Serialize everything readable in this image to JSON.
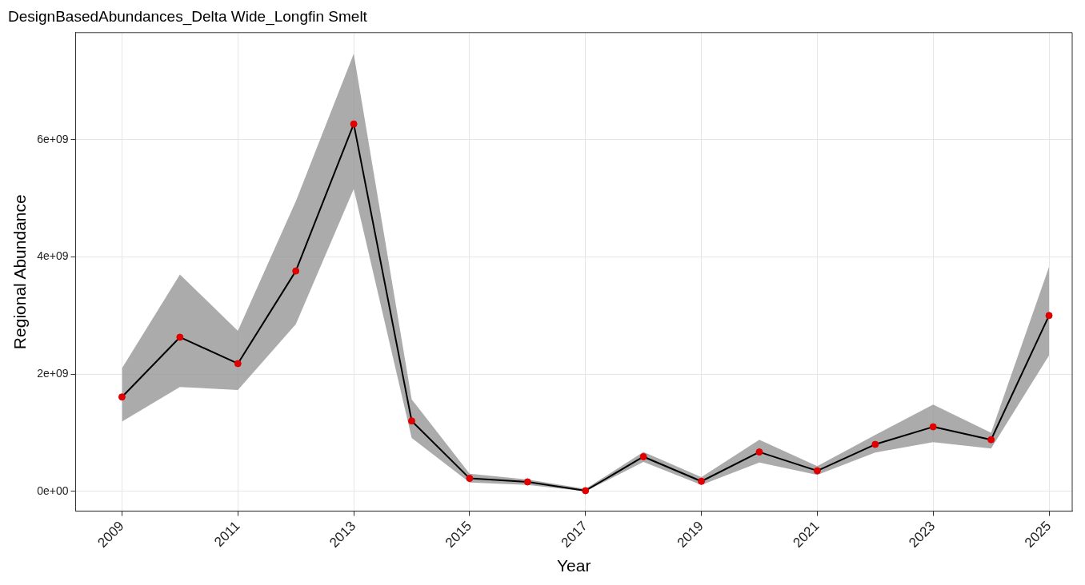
{
  "chart_data": {
    "type": "line",
    "title": "DesignBasedAbundances_Delta Wide_Longfin Smelt",
    "xlabel": "Year",
    "ylabel": "Regional Abundance",
    "x": [
      2009,
      2010,
      2011,
      2012,
      2013,
      2014,
      2015,
      2016,
      2017,
      2018,
      2019,
      2020,
      2021,
      2022,
      2023,
      2024,
      2025
    ],
    "series": [
      {
        "color": "#000000",
        "marker": "none",
        "values": [
          1610000000,
          2630000000,
          2180000000,
          3760000000,
          6270000000,
          1200000000,
          220000000,
          160000000,
          10000000,
          590000000,
          170000000,
          670000000,
          350000000,
          800000000,
          1100000000,
          880000000,
          3000000000
        ],
        "lower": [
          1190000000,
          1780000000,
          1730000000,
          2850000000,
          5160000000,
          910000000,
          150000000,
          110000000,
          0,
          500000000,
          110000000,
          490000000,
          280000000,
          660000000,
          840000000,
          730000000,
          2320000000
        ],
        "upper": [
          2100000000,
          3700000000,
          2740000000,
          4950000000,
          7470000000,
          1570000000,
          300000000,
          200000000,
          40000000,
          670000000,
          240000000,
          880000000,
          430000000,
          960000000,
          1480000000,
          1000000000,
          3830000000
        ]
      },
      {
        "color": "#e00000",
        "type": "scatter",
        "marker": "circle",
        "values": [
          1610000000,
          2630000000,
          2180000000,
          3760000000,
          6270000000,
          1200000000,
          220000000,
          160000000,
          10000000,
          590000000,
          170000000,
          670000000,
          350000000,
          800000000,
          1100000000,
          880000000,
          3000000000
        ]
      }
    ],
    "xlim": [
      2008.2,
      2025.4
    ],
    "xticks": [
      2009,
      2011,
      2013,
      2015,
      2017,
      2019,
      2021,
      2023,
      2025
    ],
    "ylim": [
      -340000000,
      7830000000
    ],
    "yticks": [
      {
        "value": 0,
        "label": "0e+00"
      },
      {
        "value": 2000000000,
        "label": "2e+09"
      },
      {
        "value": 4000000000,
        "label": "4e+09"
      },
      {
        "value": 6000000000,
        "label": "6e+09"
      }
    ],
    "grid": true,
    "legend": false
  }
}
